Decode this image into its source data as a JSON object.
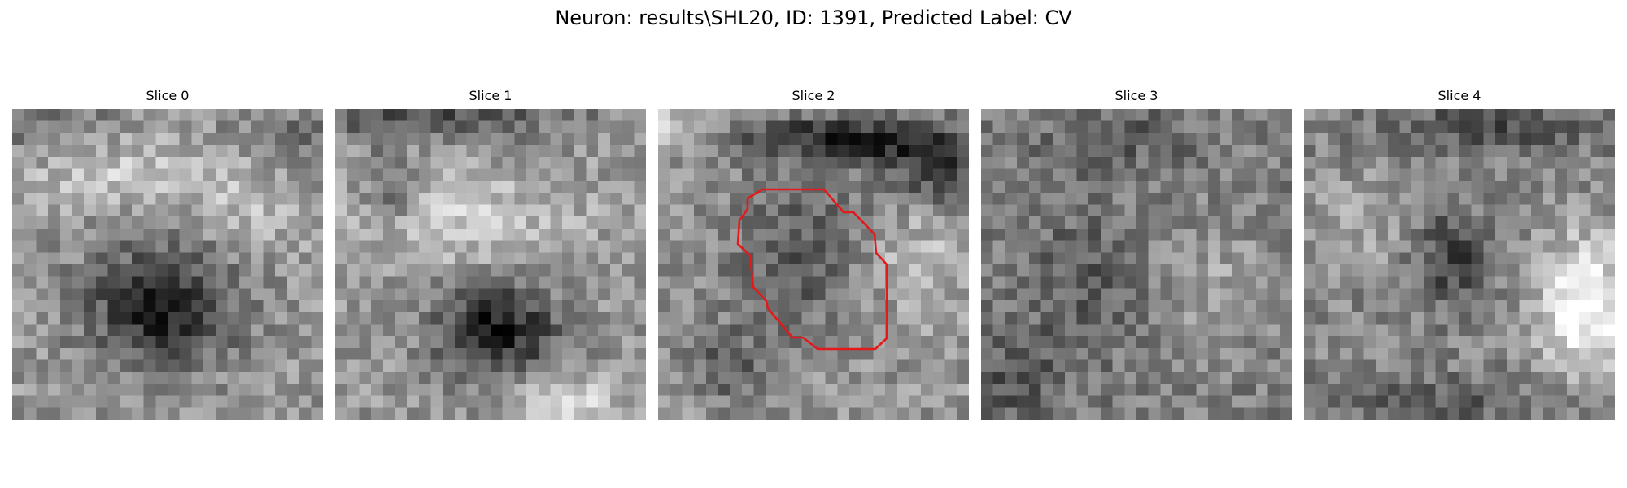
{
  "figure": {
    "title": "Neuron: results\\SHL20, ID: 1391, Predicted Label: CV"
  },
  "slices": [
    {
      "title": "Slice 0"
    },
    {
      "title": "Slice 1"
    },
    {
      "title": "Slice 2"
    },
    {
      "title": "Slice 3"
    },
    {
      "title": "Slice 4"
    }
  ],
  "colors": {
    "contour": "#e31a1c",
    "background": "#ffffff"
  }
}
